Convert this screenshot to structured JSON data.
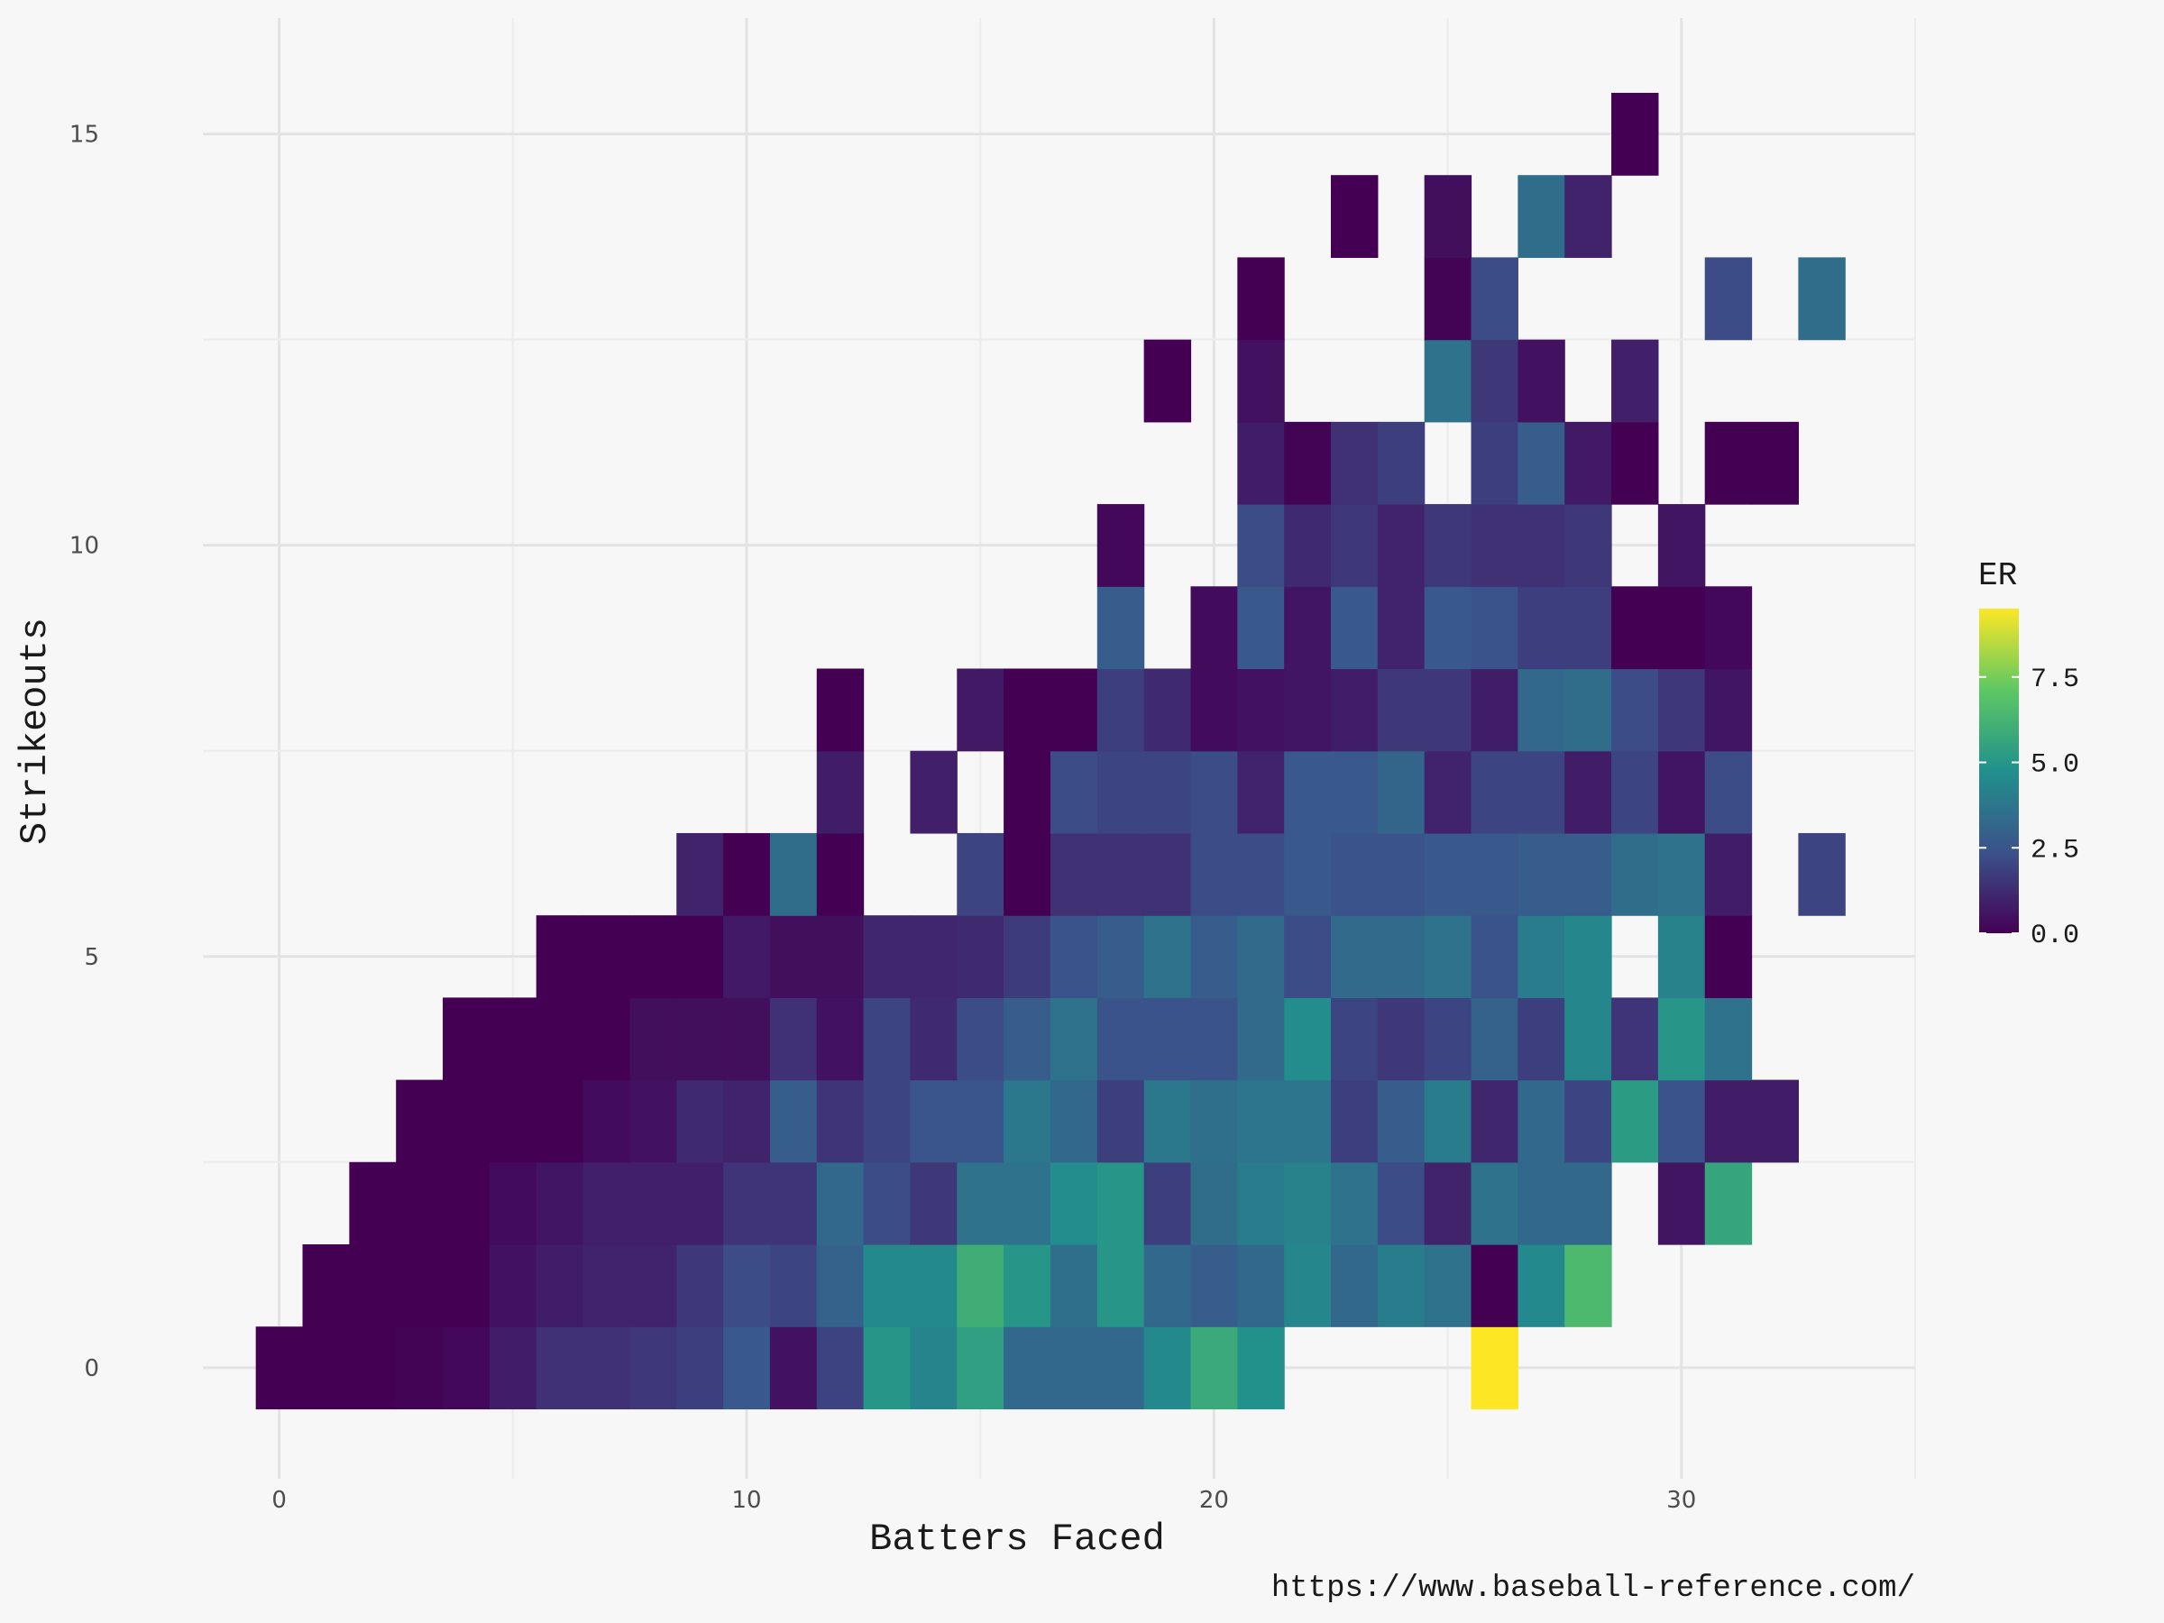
{
  "chart_data": {
    "type": "heatmap",
    "title": "",
    "xlabel": "Batters Faced",
    "ylabel": "Strikeouts",
    "caption": "https://www.baseball-reference.com/",
    "xlim": [
      -2.5,
      35
    ],
    "ylim": [
      -1.35,
      16.3
    ],
    "x_ticks": [
      0,
      10,
      20,
      30
    ],
    "y_ticks": [
      0,
      5,
      10,
      15
    ],
    "grid": true,
    "legend": {
      "title": "ER",
      "placement": "right",
      "min": 0,
      "max": 9.5,
      "ticks": [
        0.0,
        2.5,
        5.0,
        7.5
      ],
      "tick_labels": [
        "0.0",
        "2.5",
        "5.0",
        "7.5"
      ]
    },
    "colors": {
      "background": "#f7f7f7",
      "scale": [
        "#440154",
        "#3b528b",
        "#21908c",
        "#5dc863",
        "#fde725"
      ]
    },
    "cells": [
      {
        "x": 0,
        "y": 0,
        "er": 0
      },
      {
        "x": 1,
        "y": 0,
        "er": 0
      },
      {
        "x": 2,
        "y": 0,
        "er": 0
      },
      {
        "x": 3,
        "y": 0,
        "er": 0.1
      },
      {
        "x": 4,
        "y": 0,
        "er": 0.2
      },
      {
        "x": 5,
        "y": 0,
        "er": 0.8
      },
      {
        "x": 6,
        "y": 0,
        "er": 1.4
      },
      {
        "x": 7,
        "y": 0,
        "er": 1.4
      },
      {
        "x": 8,
        "y": 0,
        "er": 1.6
      },
      {
        "x": 9,
        "y": 0,
        "er": 1.8
      },
      {
        "x": 10,
        "y": 0,
        "er": 2.6
      },
      {
        "x": 11,
        "y": 0,
        "er": 0.5
      },
      {
        "x": 12,
        "y": 0,
        "er": 1.9
      },
      {
        "x": 13,
        "y": 0,
        "er": 5
      },
      {
        "x": 14,
        "y": 0,
        "er": 4.3
      },
      {
        "x": 15,
        "y": 0,
        "er": 5.4
      },
      {
        "x": 16,
        "y": 0,
        "er": 3.2
      },
      {
        "x": 17,
        "y": 0,
        "er": 3.2
      },
      {
        "x": 18,
        "y": 0,
        "er": 3.2
      },
      {
        "x": 19,
        "y": 0,
        "er": 4.5
      },
      {
        "x": 20,
        "y": 0,
        "er": 5.8
      },
      {
        "x": 21,
        "y": 0,
        "er": 4.8
      },
      {
        "x": 26,
        "y": 0,
        "er": 9.5
      },
      {
        "x": 1,
        "y": 1,
        "er": 0
      },
      {
        "x": 2,
        "y": 1,
        "er": 0
      },
      {
        "x": 3,
        "y": 1,
        "er": 0
      },
      {
        "x": 4,
        "y": 1,
        "er": 0
      },
      {
        "x": 5,
        "y": 1,
        "er": 0.5
      },
      {
        "x": 6,
        "y": 1,
        "er": 0.8
      },
      {
        "x": 7,
        "y": 1,
        "er": 1
      },
      {
        "x": 8,
        "y": 1,
        "er": 1
      },
      {
        "x": 9,
        "y": 1,
        "er": 1.6
      },
      {
        "x": 10,
        "y": 1,
        "er": 2.2
      },
      {
        "x": 11,
        "y": 1,
        "er": 2
      },
      {
        "x": 12,
        "y": 1,
        "er": 3
      },
      {
        "x": 13,
        "y": 1,
        "er": 4.5
      },
      {
        "x": 14,
        "y": 1,
        "er": 4.5
      },
      {
        "x": 15,
        "y": 1,
        "er": 6
      },
      {
        "x": 16,
        "y": 1,
        "er": 5
      },
      {
        "x": 17,
        "y": 1,
        "er": 3.5
      },
      {
        "x": 18,
        "y": 1,
        "er": 5
      },
      {
        "x": 19,
        "y": 1,
        "er": 3.2
      },
      {
        "x": 20,
        "y": 1,
        "er": 2.8
      },
      {
        "x": 21,
        "y": 1,
        "er": 3.2
      },
      {
        "x": 22,
        "y": 1,
        "er": 4.4
      },
      {
        "x": 23,
        "y": 1,
        "er": 3.2
      },
      {
        "x": 24,
        "y": 1,
        "er": 4
      },
      {
        "x": 25,
        "y": 1,
        "er": 3.6
      },
      {
        "x": 26,
        "y": 1,
        "er": 0
      },
      {
        "x": 27,
        "y": 1,
        "er": 4.5
      },
      {
        "x": 28,
        "y": 1,
        "er": 6.5
      },
      {
        "x": 2,
        "y": 2,
        "er": 0
      },
      {
        "x": 3,
        "y": 2,
        "er": 0
      },
      {
        "x": 4,
        "y": 2,
        "er": 0
      },
      {
        "x": 5,
        "y": 2,
        "er": 0.3
      },
      {
        "x": 6,
        "y": 2,
        "er": 0.6
      },
      {
        "x": 7,
        "y": 2,
        "er": 0.9
      },
      {
        "x": 8,
        "y": 2,
        "er": 0.9
      },
      {
        "x": 9,
        "y": 2,
        "er": 0.9
      },
      {
        "x": 10,
        "y": 2,
        "er": 1.5
      },
      {
        "x": 11,
        "y": 2,
        "er": 1.5
      },
      {
        "x": 12,
        "y": 2,
        "er": 3.2
      },
      {
        "x": 13,
        "y": 2,
        "er": 2.2
      },
      {
        "x": 14,
        "y": 2,
        "er": 1.6
      },
      {
        "x": 15,
        "y": 2,
        "er": 3.6
      },
      {
        "x": 16,
        "y": 2,
        "er": 3.6
      },
      {
        "x": 17,
        "y": 2,
        "er": 4.6
      },
      {
        "x": 18,
        "y": 2,
        "er": 5
      },
      {
        "x": 19,
        "y": 2,
        "er": 1.8
      },
      {
        "x": 20,
        "y": 2,
        "er": 3.4
      },
      {
        "x": 21,
        "y": 2,
        "er": 4
      },
      {
        "x": 22,
        "y": 2,
        "er": 4.2
      },
      {
        "x": 23,
        "y": 2,
        "er": 3.6
      },
      {
        "x": 24,
        "y": 2,
        "er": 2.2
      },
      {
        "x": 25,
        "y": 2,
        "er": 1
      },
      {
        "x": 26,
        "y": 2,
        "er": 3.6
      },
      {
        "x": 27,
        "y": 2,
        "er": 3.2
      },
      {
        "x": 28,
        "y": 2,
        "er": 3.2
      },
      {
        "x": 30,
        "y": 2,
        "er": 0.6
      },
      {
        "x": 31,
        "y": 2,
        "er": 5.6
      },
      {
        "x": 3,
        "y": 3,
        "er": 0
      },
      {
        "x": 4,
        "y": 3,
        "er": 0
      },
      {
        "x": 5,
        "y": 3,
        "er": 0
      },
      {
        "x": 6,
        "y": 3,
        "er": 0
      },
      {
        "x": 7,
        "y": 3,
        "er": 0.3
      },
      {
        "x": 8,
        "y": 3,
        "er": 0.5
      },
      {
        "x": 9,
        "y": 3,
        "er": 1.2
      },
      {
        "x": 10,
        "y": 3,
        "er": 1
      },
      {
        "x": 11,
        "y": 3,
        "er": 2.8
      },
      {
        "x": 12,
        "y": 3,
        "er": 1.5
      },
      {
        "x": 13,
        "y": 3,
        "er": 2
      },
      {
        "x": 14,
        "y": 3,
        "er": 2.5
      },
      {
        "x": 15,
        "y": 3,
        "er": 2.5
      },
      {
        "x": 16,
        "y": 3,
        "er": 3.8
      },
      {
        "x": 17,
        "y": 3,
        "er": 3.2
      },
      {
        "x": 18,
        "y": 3,
        "er": 1.8
      },
      {
        "x": 19,
        "y": 3,
        "er": 3.8
      },
      {
        "x": 20,
        "y": 3,
        "er": 3.5
      },
      {
        "x": 21,
        "y": 3,
        "er": 3.7
      },
      {
        "x": 22,
        "y": 3,
        "er": 3.7
      },
      {
        "x": 23,
        "y": 3,
        "er": 1.8
      },
      {
        "x": 24,
        "y": 3,
        "er": 2.8
      },
      {
        "x": 25,
        "y": 3,
        "er": 4
      },
      {
        "x": 26,
        "y": 3,
        "er": 1.1
      },
      {
        "x": 27,
        "y": 3,
        "er": 3.2
      },
      {
        "x": 28,
        "y": 3,
        "er": 2
      },
      {
        "x": 29,
        "y": 3,
        "er": 5.2
      },
      {
        "x": 30,
        "y": 3,
        "er": 2.4
      },
      {
        "x": 31,
        "y": 3,
        "er": 0.8
      },
      {
        "x": 32,
        "y": 3,
        "er": 0.8
      },
      {
        "x": 4,
        "y": 4,
        "er": 0
      },
      {
        "x": 5,
        "y": 4,
        "er": 0
      },
      {
        "x": 6,
        "y": 4,
        "er": 0
      },
      {
        "x": 7,
        "y": 4,
        "er": 0
      },
      {
        "x": 8,
        "y": 4,
        "er": 0.4
      },
      {
        "x": 9,
        "y": 4,
        "er": 0.4
      },
      {
        "x": 10,
        "y": 4,
        "er": 0.4
      },
      {
        "x": 11,
        "y": 4,
        "er": 1.4
      },
      {
        "x": 12,
        "y": 4,
        "er": 0.5
      },
      {
        "x": 13,
        "y": 4,
        "er": 2
      },
      {
        "x": 14,
        "y": 4,
        "er": 1.2
      },
      {
        "x": 15,
        "y": 4,
        "er": 2.2
      },
      {
        "x": 16,
        "y": 4,
        "er": 2.8
      },
      {
        "x": 17,
        "y": 4,
        "er": 3.6
      },
      {
        "x": 18,
        "y": 4,
        "er": 2.4
      },
      {
        "x": 19,
        "y": 4,
        "er": 2.4
      },
      {
        "x": 20,
        "y": 4,
        "er": 2.4
      },
      {
        "x": 21,
        "y": 4,
        "er": 3.3
      },
      {
        "x": 22,
        "y": 4,
        "er": 4.6
      },
      {
        "x": 23,
        "y": 4,
        "er": 2
      },
      {
        "x": 24,
        "y": 4,
        "er": 1.6
      },
      {
        "x": 25,
        "y": 4,
        "er": 2
      },
      {
        "x": 26,
        "y": 4,
        "er": 3
      },
      {
        "x": 27,
        "y": 4,
        "er": 1.8
      },
      {
        "x": 28,
        "y": 4,
        "er": 4.4
      },
      {
        "x": 29,
        "y": 4,
        "er": 1.5
      },
      {
        "x": 30,
        "y": 4,
        "er": 5
      },
      {
        "x": 31,
        "y": 4,
        "er": 3.6
      },
      {
        "x": 6,
        "y": 5,
        "er": 0
      },
      {
        "x": 7,
        "y": 5,
        "er": 0
      },
      {
        "x": 8,
        "y": 5,
        "er": 0
      },
      {
        "x": 9,
        "y": 5,
        "er": 0
      },
      {
        "x": 10,
        "y": 5,
        "er": 0.7
      },
      {
        "x": 11,
        "y": 5,
        "er": 0.4
      },
      {
        "x": 12,
        "y": 5,
        "er": 0.4
      },
      {
        "x": 13,
        "y": 5,
        "er": 1.1
      },
      {
        "x": 14,
        "y": 5,
        "er": 1.1
      },
      {
        "x": 15,
        "y": 5,
        "er": 1.2
      },
      {
        "x": 16,
        "y": 5,
        "er": 1.7
      },
      {
        "x": 17,
        "y": 5,
        "er": 2.4
      },
      {
        "x": 18,
        "y": 5,
        "er": 2.8
      },
      {
        "x": 19,
        "y": 5,
        "er": 3.6
      },
      {
        "x": 20,
        "y": 5,
        "er": 2.8
      },
      {
        "x": 21,
        "y": 5,
        "er": 3.3
      },
      {
        "x": 22,
        "y": 5,
        "er": 2.2
      },
      {
        "x": 23,
        "y": 5,
        "er": 3.3
      },
      {
        "x": 24,
        "y": 5,
        "er": 3.3
      },
      {
        "x": 25,
        "y": 5,
        "er": 3.6
      },
      {
        "x": 26,
        "y": 5,
        "er": 2.4
      },
      {
        "x": 27,
        "y": 5,
        "er": 4
      },
      {
        "x": 28,
        "y": 5,
        "er": 4.4
      },
      {
        "x": 30,
        "y": 5,
        "er": 4.2
      },
      {
        "x": 31,
        "y": 5,
        "er": 0
      },
      {
        "x": 9,
        "y": 6,
        "er": 1
      },
      {
        "x": 10,
        "y": 6,
        "er": 0
      },
      {
        "x": 11,
        "y": 6,
        "er": 3.4
      },
      {
        "x": 12,
        "y": 6,
        "er": 0
      },
      {
        "x": 15,
        "y": 6,
        "er": 2
      },
      {
        "x": 16,
        "y": 6,
        "er": 0
      },
      {
        "x": 17,
        "y": 6,
        "er": 1.4
      },
      {
        "x": 18,
        "y": 6,
        "er": 1.4
      },
      {
        "x": 19,
        "y": 6,
        "er": 1.4
      },
      {
        "x": 20,
        "y": 6,
        "er": 2.2
      },
      {
        "x": 21,
        "y": 6,
        "er": 2.2
      },
      {
        "x": 22,
        "y": 6,
        "er": 2.6
      },
      {
        "x": 23,
        "y": 6,
        "er": 2.4
      },
      {
        "x": 24,
        "y": 6,
        "er": 2.4
      },
      {
        "x": 25,
        "y": 6,
        "er": 2.6
      },
      {
        "x": 26,
        "y": 6,
        "er": 2.6
      },
      {
        "x": 27,
        "y": 6,
        "er": 2.8
      },
      {
        "x": 28,
        "y": 6,
        "er": 2.8
      },
      {
        "x": 29,
        "y": 6,
        "er": 3.4
      },
      {
        "x": 30,
        "y": 6,
        "er": 3.6
      },
      {
        "x": 31,
        "y": 6,
        "er": 0.8
      },
      {
        "x": 33,
        "y": 6,
        "er": 2
      },
      {
        "x": 12,
        "y": 7,
        "er": 0.8
      },
      {
        "x": 14,
        "y": 7,
        "er": 0.9
      },
      {
        "x": 16,
        "y": 7,
        "er": 0
      },
      {
        "x": 17,
        "y": 7,
        "er": 2.2
      },
      {
        "x": 18,
        "y": 7,
        "er": 2
      },
      {
        "x": 19,
        "y": 7,
        "er": 2
      },
      {
        "x": 20,
        "y": 7,
        "er": 2.2
      },
      {
        "x": 21,
        "y": 7,
        "er": 1
      },
      {
        "x": 22,
        "y": 7,
        "er": 2.6
      },
      {
        "x": 23,
        "y": 7,
        "er": 2.6
      },
      {
        "x": 24,
        "y": 7,
        "er": 3.1
      },
      {
        "x": 25,
        "y": 7,
        "er": 1
      },
      {
        "x": 26,
        "y": 7,
        "er": 2
      },
      {
        "x": 27,
        "y": 7,
        "er": 2
      },
      {
        "x": 28,
        "y": 7,
        "er": 0.8
      },
      {
        "x": 29,
        "y": 7,
        "er": 2
      },
      {
        "x": 30,
        "y": 7,
        "er": 0.6
      },
      {
        "x": 31,
        "y": 7,
        "er": 2.2
      },
      {
        "x": 12,
        "y": 8,
        "er": 0
      },
      {
        "x": 15,
        "y": 8,
        "er": 0.7
      },
      {
        "x": 16,
        "y": 8,
        "er": 0
      },
      {
        "x": 17,
        "y": 8,
        "er": 0
      },
      {
        "x": 18,
        "y": 8,
        "er": 1.8
      },
      {
        "x": 19,
        "y": 8,
        "er": 1.2
      },
      {
        "x": 20,
        "y": 8,
        "er": 0.3
      },
      {
        "x": 21,
        "y": 8,
        "er": 0.5
      },
      {
        "x": 22,
        "y": 8,
        "er": 0.6
      },
      {
        "x": 23,
        "y": 8,
        "er": 0.8
      },
      {
        "x": 24,
        "y": 8,
        "er": 1.6
      },
      {
        "x": 25,
        "y": 8,
        "er": 1.6
      },
      {
        "x": 26,
        "y": 8,
        "er": 0.8
      },
      {
        "x": 27,
        "y": 8,
        "er": 3.2
      },
      {
        "x": 28,
        "y": 8,
        "er": 3.4
      },
      {
        "x": 29,
        "y": 8,
        "er": 2.2
      },
      {
        "x": 30,
        "y": 8,
        "er": 1.6
      },
      {
        "x": 31,
        "y": 8,
        "er": 0.6
      },
      {
        "x": 18,
        "y": 9,
        "er": 2.8
      },
      {
        "x": 20,
        "y": 9,
        "er": 0.3
      },
      {
        "x": 21,
        "y": 9,
        "er": 2.6
      },
      {
        "x": 22,
        "y": 9,
        "er": 0.6
      },
      {
        "x": 23,
        "y": 9,
        "er": 2.6
      },
      {
        "x": 24,
        "y": 9,
        "er": 1
      },
      {
        "x": 25,
        "y": 9,
        "er": 2.6
      },
      {
        "x": 26,
        "y": 9,
        "er": 2.4
      },
      {
        "x": 27,
        "y": 9,
        "er": 1.8
      },
      {
        "x": 28,
        "y": 9,
        "er": 1.8
      },
      {
        "x": 29,
        "y": 9,
        "er": 0
      },
      {
        "x": 30,
        "y": 9,
        "er": 0
      },
      {
        "x": 31,
        "y": 9,
        "er": 0.2
      },
      {
        "x": 18,
        "y": 10,
        "er": 0.2
      },
      {
        "x": 21,
        "y": 10,
        "er": 2.2
      },
      {
        "x": 22,
        "y": 10,
        "er": 1.2
      },
      {
        "x": 23,
        "y": 10,
        "er": 1.6
      },
      {
        "x": 24,
        "y": 10,
        "er": 1
      },
      {
        "x": 25,
        "y": 10,
        "er": 1.6
      },
      {
        "x": 26,
        "y": 10,
        "er": 1.4
      },
      {
        "x": 27,
        "y": 10,
        "er": 1.4
      },
      {
        "x": 28,
        "y": 10,
        "er": 1.6
      },
      {
        "x": 30,
        "y": 10,
        "er": 0.6
      },
      {
        "x": 21,
        "y": 11,
        "er": 0.8
      },
      {
        "x": 22,
        "y": 11,
        "er": 0.1
      },
      {
        "x": 23,
        "y": 11,
        "er": 1.4
      },
      {
        "x": 24,
        "y": 11,
        "er": 1.8
      },
      {
        "x": 26,
        "y": 11,
        "er": 1.8
      },
      {
        "x": 27,
        "y": 11,
        "er": 2.8
      },
      {
        "x": 28,
        "y": 11,
        "er": 0.7
      },
      {
        "x": 29,
        "y": 11,
        "er": 0
      },
      {
        "x": 31,
        "y": 11,
        "er": 0
      },
      {
        "x": 32,
        "y": 11,
        "er": 0
      },
      {
        "x": 19,
        "y": 12,
        "er": 0
      },
      {
        "x": 21,
        "y": 12,
        "er": 0.5
      },
      {
        "x": 25,
        "y": 12,
        "er": 3.6
      },
      {
        "x": 26,
        "y": 12,
        "er": 1.6
      },
      {
        "x": 27,
        "y": 12,
        "er": 0.5
      },
      {
        "x": 29,
        "y": 12,
        "er": 0.9
      },
      {
        "x": 21,
        "y": 13,
        "er": 0
      },
      {
        "x": 25,
        "y": 13,
        "er": 0.1
      },
      {
        "x": 26,
        "y": 13,
        "er": 2.2
      },
      {
        "x": 31,
        "y": 13,
        "er": 2.2
      },
      {
        "x": 33,
        "y": 13,
        "er": 3.4
      },
      {
        "x": 23,
        "y": 14,
        "er": 0
      },
      {
        "x": 25,
        "y": 14,
        "er": 0.4
      },
      {
        "x": 27,
        "y": 14,
        "er": 3.4
      },
      {
        "x": 28,
        "y": 14,
        "er": 1
      },
      {
        "x": 29,
        "y": 15,
        "er": 0
      }
    ]
  }
}
